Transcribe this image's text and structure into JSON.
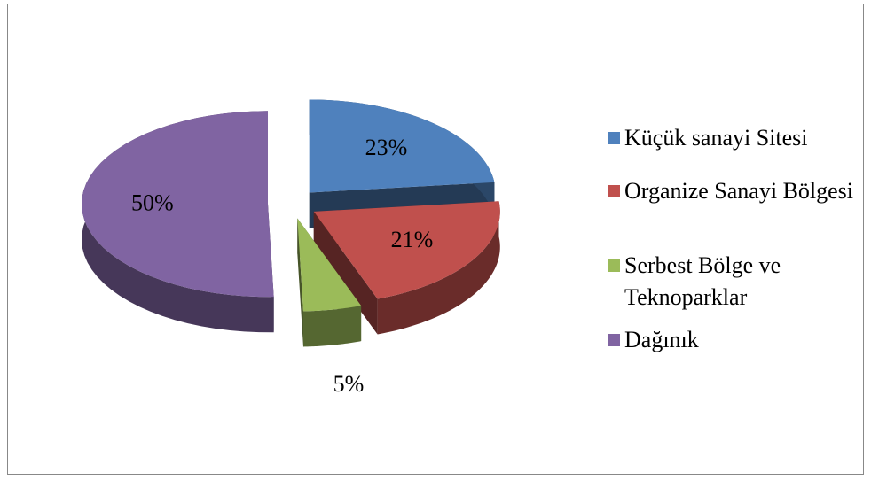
{
  "chart_data": {
    "type": "pie",
    "categories": [
      "Küçük sanayi Sitesi",
      "Organize Sanayi Bölgesi",
      "Serbest Bölge ve Teknoparklar",
      "Dağınık"
    ],
    "values": [
      23,
      21,
      5,
      50
    ],
    "value_labels": [
      "23%",
      "21%",
      "5%",
      "50%"
    ],
    "colors": [
      "#4f81bd",
      "#c0504d",
      "#9bbb59",
      "#8064a2"
    ],
    "legend": "right"
  }
}
